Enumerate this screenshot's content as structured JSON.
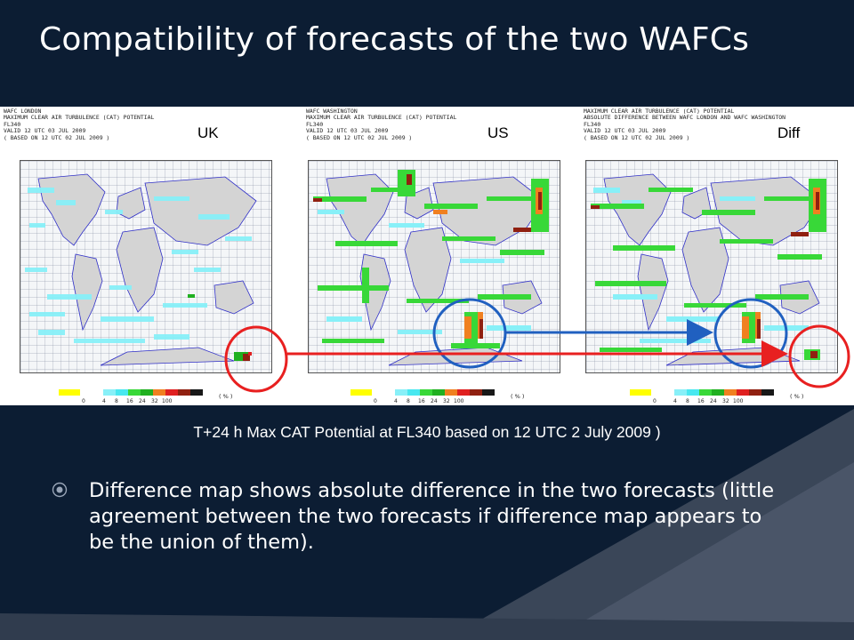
{
  "slide": {
    "title": "Compatibility of forecasts of the two WAFCs",
    "caption": "T+24 h Max CAT Potential at FL340 based on 12 UTC 2 July 2009 )",
    "bullet": "Difference map shows absolute difference in the two forecasts (little agreement between the two forecasts if difference map appears to be the union of them)."
  },
  "panels": [
    {
      "label": "UK",
      "header": [
        "WAFC LONDON",
        "MAXIMUM CLEAR AIR TURBULENCE (CAT) POTENTIAL",
        "FL340",
        "VALID 12 UTC 03 JUL 2009",
        "( BASED ON 12 UTC 02 JUL 2009 )"
      ]
    },
    {
      "label": "US",
      "header": [
        "WAFC WASHINGTON",
        "MAXIMUM CLEAR AIR TURBULENCE (CAT) POTENTIAL",
        "FL340",
        "VALID 12 UTC 03 JUL 2009",
        "( BASED ON 12 UTC 02 JUL 2009 )"
      ]
    },
    {
      "label": "Diff",
      "header": [
        "MAXIMUM CLEAR AIR TURBULENCE (CAT) POTENTIAL",
        "ABSOLUTE DIFFERENCE BETWEEN WAFC LONDON AND WAFC WASHINGTON",
        "FL340",
        "VALID 12 UTC 03 JUL 2009",
        "( BASED ON 12 UTC 02 JUL 2009 )"
      ]
    }
  ],
  "legend": {
    "ticks": [
      "0",
      "4",
      "8",
      "16",
      "24",
      "32",
      "100"
    ],
    "unit": "( % )",
    "colors": [
      "#88f0f8",
      "#48e8f0",
      "#38d838",
      "#20b020",
      "#f08020",
      "#e02020",
      "#902010",
      "#181818"
    ]
  },
  "colors": {
    "background": "#0c1d33",
    "land": "#d4d4d4",
    "coast": "#3030c8",
    "red_arrow": "#e82020",
    "blue_arrow": "#2060c0"
  }
}
